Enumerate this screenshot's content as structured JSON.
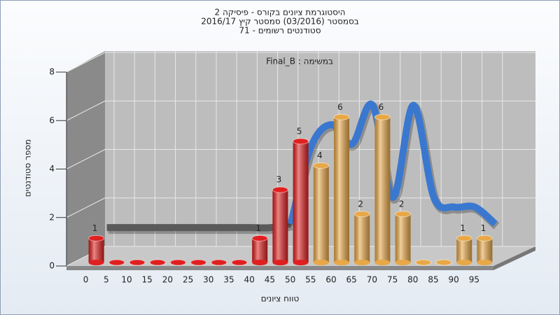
{
  "chart_data": {
    "type": "bar3d",
    "title": "היסטוגרמת ציונים בקורס - פיסיקה 2",
    "subtitle": "בסמסטר (03/2016) סמסטר קיץ 2016/17",
    "subtitle2": "סטודנטים רשומים - 71",
    "annotation": "במשימה : Final_B",
    "x_label": "טווח ציונים",
    "y_label": "מספר סטודנטים",
    "categories": [
      "0",
      "5",
      "10",
      "15",
      "20",
      "25",
      "30",
      "35",
      "40",
      "45",
      "50",
      "55",
      "60",
      "65",
      "70",
      "75",
      "80",
      "85",
      "90",
      "95"
    ],
    "values": [
      1,
      0,
      0,
      0,
      0,
      0,
      0,
      0,
      1,
      3,
      5,
      4,
      6,
      2,
      6,
      2,
      0,
      0,
      1,
      1
    ],
    "colors": [
      "#e02020",
      "#e02020",
      "#e02020",
      "#e02020",
      "#e02020",
      "#e02020",
      "#e02020",
      "#e02020",
      "#e02020",
      "#e02020",
      "#e02020",
      "#e8a848",
      "#e8a848",
      "#e8a848",
      "#e8a848",
      "#e8a848",
      "#e8a848",
      "#e8a848",
      "#e8a848",
      "#e8a848"
    ],
    "trend": [
      {
        "color": "#5a5a5a",
        "values": [
          1.15,
          1.15,
          1.15,
          1.15,
          1.15,
          1.15,
          1.15,
          1.15,
          1.15,
          1.3,
          null,
          null,
          null,
          null,
          null,
          null,
          null,
          null,
          null,
          null
        ]
      },
      {
        "color": "#3a78d0",
        "values": [
          null,
          null,
          null,
          null,
          null,
          null,
          null,
          null,
          null,
          1.3,
          4.5,
          5.4,
          4.6,
          6.2,
          2.4,
          6.2,
          2.4,
          2.0,
          2.0,
          1.3
        ]
      }
    ],
    "ylim": [
      0,
      8
    ],
    "yticks": [
      0,
      2,
      4,
      6,
      8
    ],
    "grid": true
  }
}
